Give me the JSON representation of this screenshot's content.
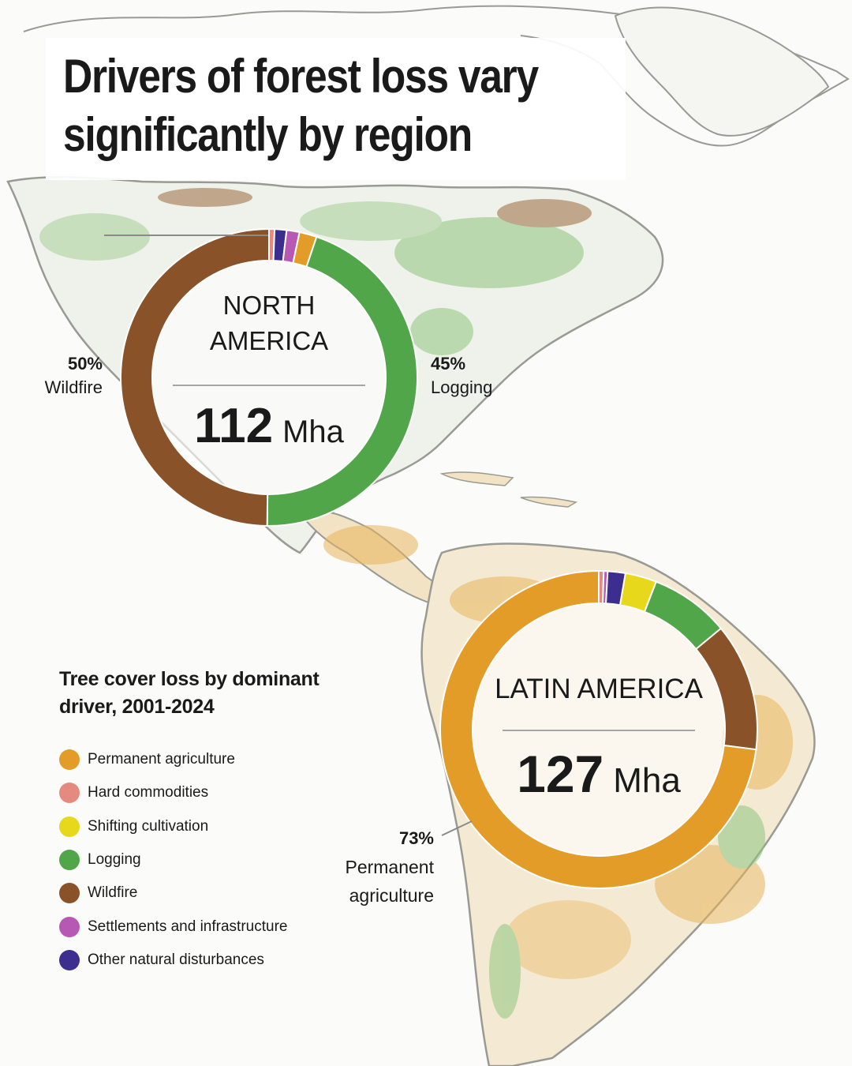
{
  "title": "Drivers of forest loss vary significantly by region",
  "colors": {
    "permanent_agriculture": "#e39c28",
    "hard_commodities": "#e58a7e",
    "shifting_cultivation": "#e7d81c",
    "logging": "#52a64a",
    "wildfire": "#8a5228",
    "settlements": "#b758b4",
    "other_natural": "#3b2e8f"
  },
  "legend": {
    "title": "Tree cover loss by dominant driver, 2001-2024",
    "items": [
      {
        "label": "Permanent agriculture",
        "color": "#e39c28"
      },
      {
        "label": "Hard commodities",
        "color": "#e58a7e"
      },
      {
        "label": "Shifting cultivation",
        "color": "#e7d81c"
      },
      {
        "label": "Logging",
        "color": "#52a64a"
      },
      {
        "label": "Wildfire",
        "color": "#8a5228"
      },
      {
        "label": "Settlements and infrastructure",
        "color": "#b758b4"
      },
      {
        "label": "Other natural disturbances",
        "color": "#3b2e8f"
      }
    ]
  },
  "chart_data": [
    {
      "type": "pie",
      "region": "NORTH AMERICA",
      "total_value": "112",
      "total_unit": "Mha",
      "slices": [
        {
          "label": "Hard commodities",
          "value": 0.6,
          "color": "#e58a7e"
        },
        {
          "label": "Other natural disturbances",
          "value": 1.3,
          "color": "#3b2e8f"
        },
        {
          "label": "Settlements and infrastructure",
          "value": 1.4,
          "color": "#b758b4"
        },
        {
          "label": "Permanent agriculture",
          "value": 1.9,
          "color": "#e39c28"
        },
        {
          "label": "Logging",
          "value": 45,
          "color": "#52a64a"
        },
        {
          "label": "Wildfire",
          "value": 49.8,
          "color": "#8a5228"
        }
      ],
      "callouts": [
        {
          "pct": "50%",
          "label": "Wildfire"
        },
        {
          "pct": "45%",
          "label": "Logging"
        }
      ]
    },
    {
      "type": "pie",
      "region": "LATIN AMERICA",
      "total_value": "127",
      "total_unit": "Mha",
      "slices": [
        {
          "label": "Hard commodities",
          "value": 0.5,
          "color": "#e58a7e"
        },
        {
          "label": "Settlements and infrastructure",
          "value": 0.4,
          "color": "#b758b4"
        },
        {
          "label": "Other natural disturbances",
          "value": 1.8,
          "color": "#3b2e8f"
        },
        {
          "label": "Shifting cultivation",
          "value": 3.2,
          "color": "#e7d81c"
        },
        {
          "label": "Logging",
          "value": 8.1,
          "color": "#52a64a"
        },
        {
          "label": "Wildfire",
          "value": 13,
          "color": "#8a5228"
        },
        {
          "label": "Permanent agriculture",
          "value": 73,
          "color": "#e39c28"
        }
      ],
      "callouts": [
        {
          "pct": "73%",
          "label": "Permanent agriculture"
        }
      ]
    }
  ]
}
